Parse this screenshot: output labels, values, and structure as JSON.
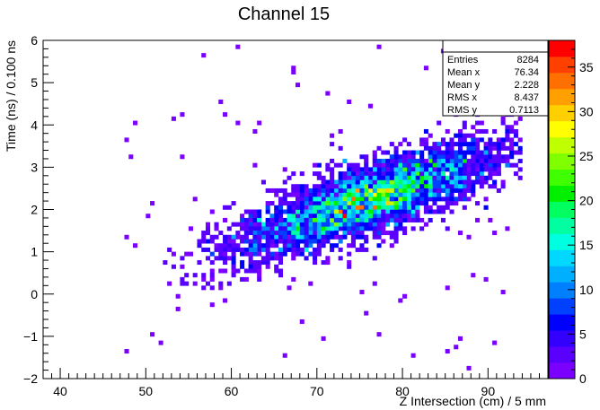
{
  "chart_data": {
    "type": "heatmap",
    "title": "Channel 15",
    "xlabel": "Z Intersection (cm) / 5 mm",
    "ylabel": "Time (ns) / 0.100 ns",
    "xlim": [
      38,
      97
    ],
    "ylim": [
      -2,
      6
    ],
    "x_ticks": [
      "40",
      "50",
      "60",
      "70",
      "80",
      "90"
    ],
    "y_ticks": [
      "−2",
      "−1",
      "0",
      "1",
      "2",
      "3",
      "4",
      "5",
      "6"
    ],
    "bin_width_x": 0.5,
    "bin_width_y": 0.1,
    "color_scale": {
      "min": 0,
      "max": 38,
      "ticks": [
        "0",
        "5",
        "10",
        "15",
        "20",
        "25",
        "30",
        "35"
      ],
      "palette": [
        "#7a00ff",
        "#5a00ff",
        "#3300ff",
        "#0000ff",
        "#0040ff",
        "#0080ff",
        "#00b0ff",
        "#00d8ff",
        "#00ffe0",
        "#00ffa0",
        "#00ff60",
        "#00f000",
        "#40ff00",
        "#80ff00",
        "#c0ff00",
        "#ffff00",
        "#ffd000",
        "#ffa000",
        "#ff7000",
        "#ff4000",
        "#ff0000"
      ]
    },
    "band": {
      "description_free": true,
      "slope": 0.068,
      "intercept_at_x80": 2.5,
      "x_range": [
        52,
        94
      ]
    },
    "stats": {
      "rows": [
        {
          "label": "Entries",
          "value": "8284"
        },
        {
          "label": "Mean x",
          "value": "76.34"
        },
        {
          "label": "Mean y",
          "value": "2.228"
        },
        {
          "label": "RMS x",
          "value": "8.437"
        },
        {
          "label": "RMS y",
          "value": "0.7113"
        }
      ]
    },
    "grid": false
  }
}
